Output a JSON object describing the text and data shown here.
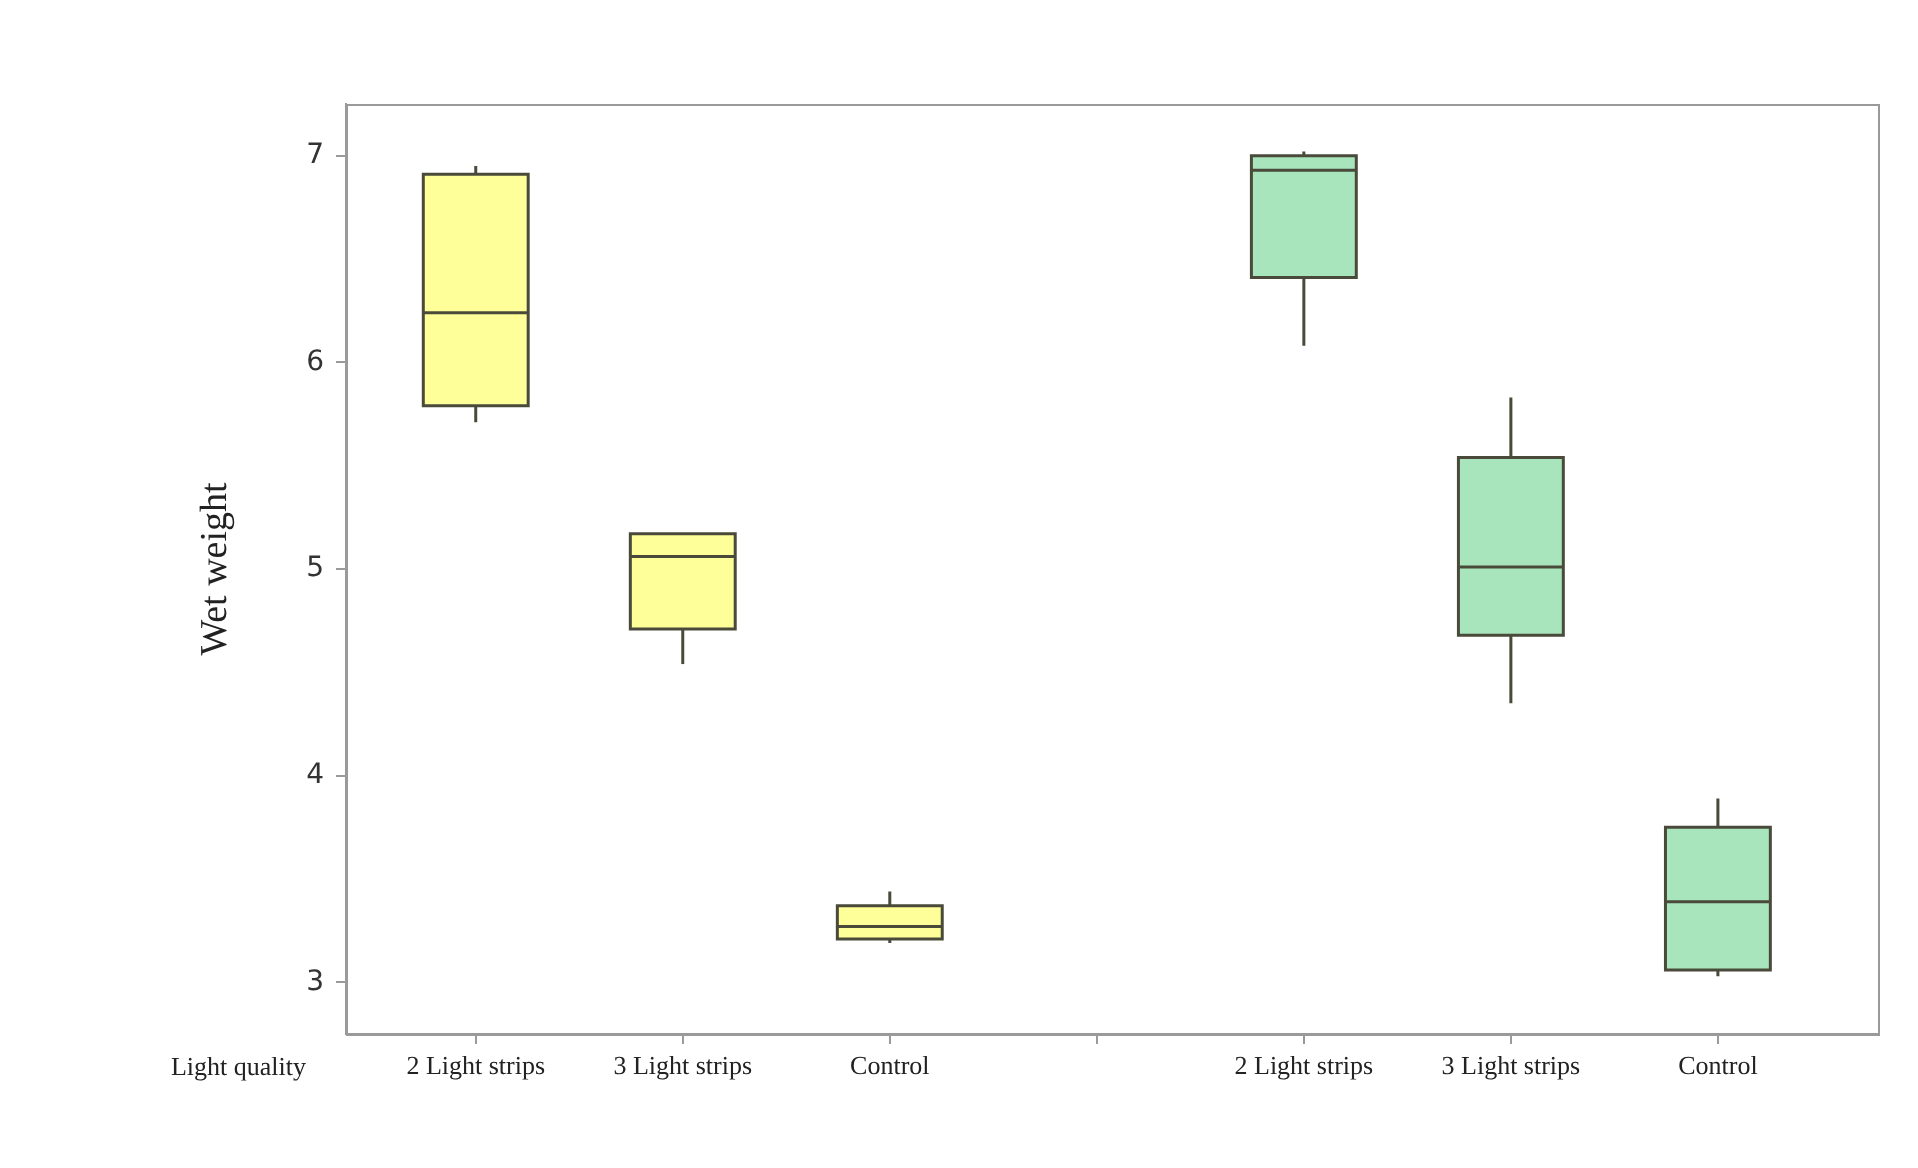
{
  "chart_data": {
    "type": "box",
    "ylabel": "Wet weight",
    "annotations": [
      "Light quality"
    ],
    "categories": [
      "2 Light strips",
      "3 Light strips",
      "Control",
      null,
      "2 Light strips",
      "3 Light strips",
      "Control"
    ],
    "colors": [
      "#ffff99",
      "#ffff99",
      "#ffff99",
      null,
      "#a8e4bc",
      "#a8e4bc",
      "#a8e4bc"
    ],
    "boxes": [
      {
        "low": 5.71,
        "q1": 5.79,
        "median": 6.24,
        "q3": 6.91,
        "high": 6.95
      },
      {
        "low": 4.54,
        "q1": 4.71,
        "median": 5.06,
        "q3": 5.17,
        "high": 5.17
      },
      {
        "low": 3.19,
        "q1": 3.21,
        "median": 3.27,
        "q3": 3.37,
        "high": 3.44
      },
      null,
      {
        "low": 6.08,
        "q1": 6.41,
        "median": 6.93,
        "q3": 7.0,
        "high": 7.02
      },
      {
        "low": 4.35,
        "q1": 4.68,
        "median": 5.01,
        "q3": 5.54,
        "high": 5.83
      },
      {
        "low": 3.03,
        "q1": 3.06,
        "median": 3.39,
        "q3": 3.75,
        "high": 3.89
      }
    ],
    "ylim": [
      2.75,
      7.25
    ],
    "yticks": [
      3,
      4,
      5,
      6,
      7
    ],
    "grid": false,
    "legend": false
  }
}
